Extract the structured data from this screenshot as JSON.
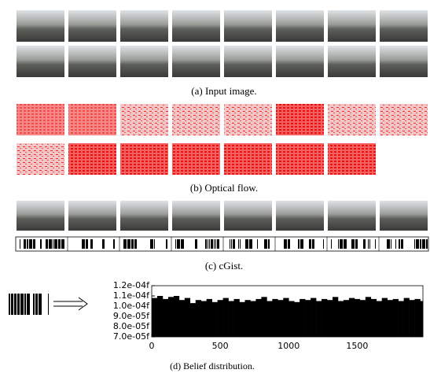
{
  "captions": {
    "a": "(a) Input image.",
    "b": "(b) Optical flow.",
    "c": "(c) cGist.",
    "d": "(d) Belief distribution."
  },
  "chart_data": {
    "type": "bar",
    "x": [
      0,
      40,
      80,
      120,
      160,
      200,
      240,
      280,
      320,
      360,
      400,
      440,
      480,
      520,
      560,
      600,
      640,
      680,
      720,
      760,
      800,
      840,
      880,
      920,
      960,
      1000,
      1040,
      1080,
      1120,
      1160,
      1200,
      1240,
      1280,
      1320,
      1360,
      1400,
      1440,
      1480,
      1520,
      1560,
      1600,
      1640,
      1680,
      1720,
      1760,
      1800,
      1840,
      1880,
      1920,
      1960
    ],
    "values": [
      0.000108,
      0.00011,
      0.000107,
      0.000109,
      0.00011,
      0.000106,
      0.000108,
      0.000103,
      0.000106,
      0.000105,
      0.000107,
      0.000104,
      0.000106,
      0.000108,
      0.000105,
      0.000107,
      0.000104,
      0.000106,
      0.000105,
      0.000107,
      0.000109,
      0.000105,
      0.000107,
      0.000106,
      0.000108,
      0.000105,
      0.000104,
      0.000107,
      0.000106,
      0.000108,
      0.000105,
      0.000107,
      0.000106,
      0.000109,
      0.000105,
      0.000106,
      0.000108,
      0.000107,
      0.000106,
      0.000109,
      0.000107,
      0.000105,
      0.000108,
      0.000106,
      0.000107,
      0.000105,
      0.000108,
      0.000106,
      0.000107,
      0.000105
    ],
    "color": "#000000",
    "xlim": [
      0,
      1980
    ],
    "xticks": [
      0,
      500,
      1000,
      1500
    ],
    "ylim": [
      7e-05,
      0.00012
    ],
    "yticks": [
      {
        "value": 7e-05,
        "label": "7.0e-05f"
      },
      {
        "value": 8e-05,
        "label": "8.0e-05f"
      },
      {
        "value": 9e-05,
        "label": "9.0e-05f"
      },
      {
        "value": 0.0001,
        "label": "1.0e-04f"
      },
      {
        "value": 0.00011,
        "label": "1.1e-04f"
      },
      {
        "value": 0.00012,
        "label": "1.2e-04f"
      }
    ]
  }
}
